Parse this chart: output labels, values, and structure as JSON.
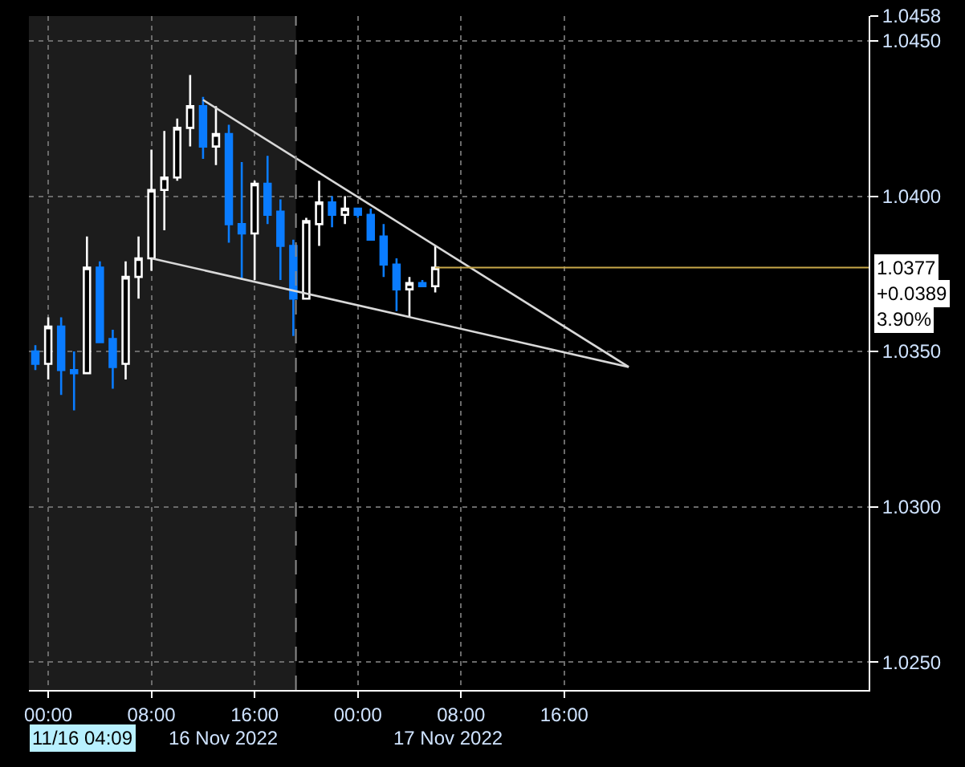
{
  "chart_data": {
    "type": "candlestick",
    "x": [
      "2022-11-15T23:00",
      "2022-11-16T00:00",
      "2022-11-16T01:00",
      "2022-11-16T02:00",
      "2022-11-16T03:00",
      "2022-11-16T04:00",
      "2022-11-16T05:00",
      "2022-11-16T06:00",
      "2022-11-16T07:00",
      "2022-11-16T08:00",
      "2022-11-16T09:00",
      "2022-11-16T10:00",
      "2022-11-16T11:00",
      "2022-11-16T12:00",
      "2022-11-16T13:00",
      "2022-11-16T14:00",
      "2022-11-16T15:00",
      "2022-11-16T16:00",
      "2022-11-16T17:00",
      "2022-11-16T18:00",
      "2022-11-16T19:00",
      "2022-11-16T20:00",
      "2022-11-16T21:00",
      "2022-11-16T22:00",
      "2022-11-16T23:00",
      "2022-11-17T00:00",
      "2022-11-17T01:00",
      "2022-11-17T02:00",
      "2022-11-17T03:00",
      "2022-11-17T04:00",
      "2022-11-17T05:00",
      "2022-11-17T06:00"
    ],
    "ohlc": [
      [
        1.035,
        1.0352,
        1.0344,
        1.0346
      ],
      [
        1.0346,
        1.0361,
        1.0341,
        1.0358
      ],
      [
        1.0358,
        1.0361,
        1.0336,
        1.0344
      ],
      [
        1.0344,
        1.035,
        1.0331,
        1.0343
      ],
      [
        1.0343,
        1.0387,
        1.0343,
        1.0377
      ],
      [
        1.0377,
        1.0379,
        1.0353,
        1.0353
      ],
      [
        1.0354,
        1.0357,
        1.0338,
        1.0345
      ],
      [
        1.0346,
        1.0379,
        1.0341,
        1.0374
      ],
      [
        1.0374,
        1.0387,
        1.0367,
        1.038
      ],
      [
        1.038,
        1.0415,
        1.0376,
        1.0402
      ],
      [
        1.0402,
        1.0421,
        1.0389,
        1.0406
      ],
      [
        1.0406,
        1.0425,
        1.0405,
        1.0422
      ],
      [
        1.0422,
        1.0439,
        1.0416,
        1.0429
      ],
      [
        1.0429,
        1.0432,
        1.0412,
        1.0416
      ],
      [
        1.0416,
        1.0429,
        1.041,
        1.042
      ],
      [
        1.042,
        1.0423,
        1.0385,
        1.0391
      ],
      [
        1.0391,
        1.0411,
        1.0373,
        1.0388
      ],
      [
        1.0388,
        1.0405,
        1.0373,
        1.0404
      ],
      [
        1.0404,
        1.0413,
        1.0391,
        1.0394
      ],
      [
        1.0395,
        1.0399,
        1.0373,
        1.0384
      ],
      [
        1.0384,
        1.0386,
        1.0355,
        1.0367
      ],
      [
        1.0367,
        1.0393,
        1.0367,
        1.0392
      ],
      [
        1.0391,
        1.0405,
        1.0384,
        1.0398
      ],
      [
        1.0398,
        1.04,
        1.039,
        1.0394
      ],
      [
        1.0394,
        1.04,
        1.0391,
        1.0396
      ],
      [
        1.0396,
        1.0396,
        1.0393,
        1.0394
      ],
      [
        1.0394,
        1.0396,
        1.0386,
        1.0386
      ],
      [
        1.0387,
        1.0391,
        1.0374,
        1.0378
      ],
      [
        1.0378,
        1.038,
        1.0363,
        1.037
      ],
      [
        1.037,
        1.0374,
        1.0361,
        1.0372
      ],
      [
        1.0372,
        1.0373,
        1.0371,
        1.0371
      ],
      [
        1.0371,
        1.0384,
        1.0369,
        1.0377
      ]
    ],
    "colors": [
      "#0a7cff",
      "#ffffff",
      "#0a7cff",
      "#0a7cff",
      "#ffffff",
      "#0a7cff",
      "#0a7cff",
      "#ffffff",
      "#ffffff",
      "#ffffff",
      "#ffffff",
      "#ffffff",
      "#ffffff",
      "#0a7cff",
      "#ffffff",
      "#0a7cff",
      "#0a7cff",
      "#ffffff",
      "#0a7cff",
      "#0a7cff",
      "#0a7cff",
      "#ffffff",
      "#ffffff",
      "#0a7cff",
      "#ffffff",
      "#0a7cff",
      "#0a7cff",
      "#0a7cff",
      "#0a7cff",
      "#ffffff",
      "#0a7cff",
      "#ffffff"
    ],
    "series": [
      {
        "type": "line",
        "color": "#d8d8d8",
        "x": [
          "2022-11-16T12:00",
          "2022-11-17T21:00"
        ],
        "values": [
          1.0431,
          1.0345
        ]
      },
      {
        "type": "line",
        "color": "#d8d8d8",
        "x": [
          "2022-11-16T08:00",
          "2022-11-17T21:00"
        ],
        "values": [
          1.038,
          1.0345
        ]
      }
    ],
    "xlim": [
      "2022-11-15T22:30",
      "2022-11-18T15:36"
    ],
    "xticks": [
      {
        "value": "2022-11-16T00:00",
        "label": "00:00"
      },
      {
        "value": "2022-11-16T08:00",
        "label": "08:00"
      },
      {
        "value": "2022-11-16T16:00",
        "label": "16:00"
      },
      {
        "value": "2022-11-17T00:00",
        "label": "00:00"
      },
      {
        "value": "2022-11-17T08:00",
        "label": "08:00"
      },
      {
        "value": "2022-11-17T16:00",
        "label": "16:00"
      }
    ],
    "ylim": [
      1.0241,
      1.0458
    ],
    "yticks": [
      {
        "value": 1.025,
        "label": "1.0250"
      },
      {
        "value": 1.03,
        "label": "1.0300"
      },
      {
        "value": 1.035,
        "label": "1.0350"
      },
      {
        "value": 1.04,
        "label": "1.0400"
      },
      {
        "value": 1.045,
        "label": "1.0450"
      },
      1.0458
    ],
    "grid": true,
    "bands": [
      {
        "axis": "x",
        "from": "2022-11-15T22:30",
        "to": "2022-11-16T19:12",
        "color": "#1c1c1c"
      }
    ],
    "ref_lines": [
      {
        "axis": "x",
        "value": "2022-11-16T19:12",
        "color": "#8a8a8a",
        "line_style": "dashed"
      },
      {
        "axis": "y",
        "value": 1.0377,
        "label": "1.0377",
        "color": "#c8a84a"
      }
    ],
    "annotations": [
      "+0.0389",
      "3.90%",
      "11/16 04:09",
      "16 Nov 2022",
      "17 Nov 2022"
    ]
  }
}
